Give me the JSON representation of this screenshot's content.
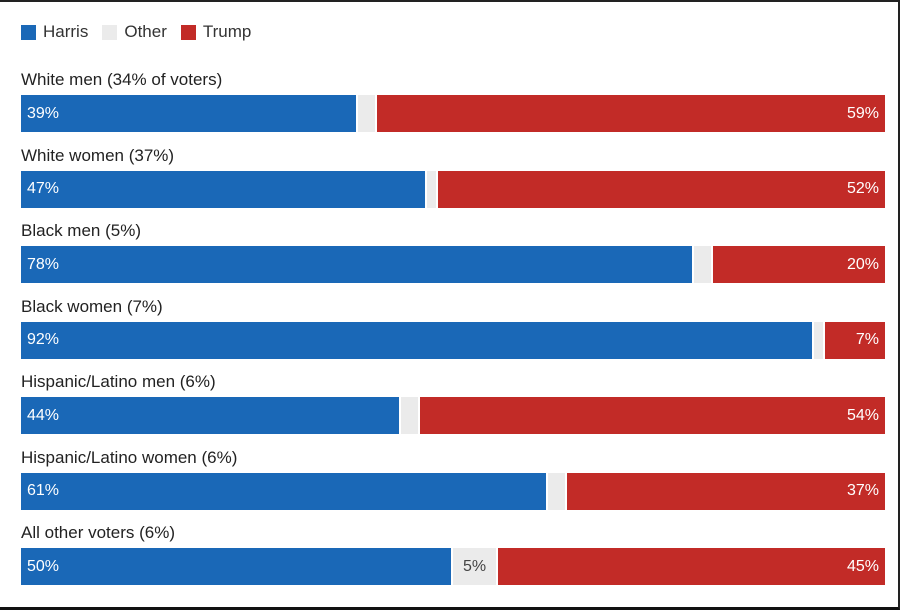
{
  "legend": [
    {
      "label": "Harris",
      "color": "#1a68b7"
    },
    {
      "label": "Other",
      "color": "#ebebeb"
    },
    {
      "label": "Trump",
      "color": "#c22b27"
    }
  ],
  "chart_data": {
    "type": "bar",
    "orientation": "horizontal",
    "stacked": true,
    "categories": [
      "White men (34% of voters)",
      "White women (37%)",
      "Black men (5%)",
      "Black women (7%)",
      "Hispanic/Latino men (6%)",
      "Hispanic/Latino women (6%)",
      "All other voters (6%)"
    ],
    "series": [
      {
        "name": "Harris",
        "color": "#1a68b7",
        "values": [
          39,
          47,
          78,
          92,
          44,
          61,
          50
        ],
        "labels": [
          "39%",
          "47%",
          "78%",
          "92%",
          "44%",
          "61%",
          "50%"
        ]
      },
      {
        "name": "Other",
        "color": "#ebebeb",
        "values": [
          2,
          1,
          2,
          1,
          2,
          2,
          5
        ],
        "labels": [
          "",
          "",
          "",
          "",
          "",
          "",
          "5%"
        ]
      },
      {
        "name": "Trump",
        "color": "#c22b27",
        "values": [
          59,
          52,
          20,
          7,
          54,
          37,
          45
        ],
        "labels": [
          "59%",
          "52%",
          "20%",
          "7%",
          "54%",
          "37%",
          "45%"
        ]
      }
    ],
    "xlim": [
      0,
      100
    ],
    "legend_position": "top-left",
    "grid": false
  }
}
